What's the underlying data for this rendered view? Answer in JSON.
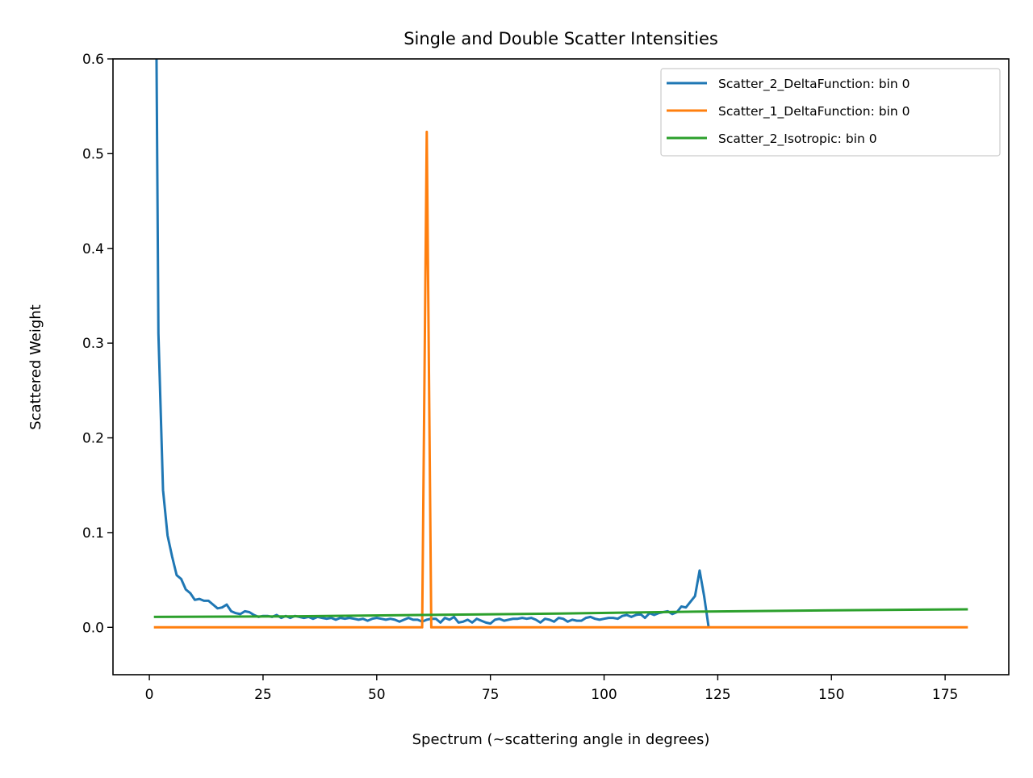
{
  "chart_data": {
    "type": "line",
    "title": "Single and Double Scatter Intensities",
    "xlabel": "Spectrum (~scattering angle in degrees)",
    "ylabel": "Scattered Weight",
    "xlim": [
      -8,
      189
    ],
    "ylim": [
      -0.05,
      0.6
    ],
    "xticks": [
      0,
      25,
      50,
      75,
      100,
      125,
      150,
      175
    ],
    "xtick_labels": [
      "0",
      "25",
      "50",
      "75",
      "100",
      "125",
      "150",
      "175"
    ],
    "yticks": [
      0.0,
      0.1,
      0.2,
      0.3,
      0.4,
      0.5,
      0.6
    ],
    "ytick_labels": [
      "0.0",
      "0.1",
      "0.2",
      "0.3",
      "0.4",
      "0.5",
      "0.6"
    ],
    "grid": false,
    "legend_position": "top-right",
    "series": [
      {
        "name": "Scatter_2_DeltaFunction: bin 0",
        "color": "#1f77b4",
        "x_start": 1,
        "values": [
          1.0,
          0.31,
          0.145,
          0.097,
          0.075,
          0.055,
          0.051,
          0.04,
          0.036,
          0.029,
          0.03,
          0.028,
          0.028,
          0.024,
          0.02,
          0.021,
          0.024,
          0.017,
          0.015,
          0.014,
          0.017,
          0.016,
          0.013,
          0.011,
          0.012,
          0.012,
          0.011,
          0.013,
          0.01,
          0.012,
          0.01,
          0.012,
          0.011,
          0.01,
          0.011,
          0.009,
          0.011,
          0.01,
          0.009,
          0.01,
          0.008,
          0.01,
          0.009,
          0.01,
          0.009,
          0.008,
          0.009,
          0.007,
          0.009,
          0.01,
          0.009,
          0.008,
          0.009,
          0.008,
          0.006,
          0.008,
          0.01,
          0.008,
          0.008,
          0.006,
          0.008,
          0.009,
          0.009,
          0.005,
          0.01,
          0.008,
          0.011,
          0.005,
          0.006,
          0.008,
          0.005,
          0.009,
          0.007,
          0.005,
          0.004,
          0.008,
          0.009,
          0.007,
          0.008,
          0.009,
          0.009,
          0.01,
          0.009,
          0.01,
          0.008,
          0.005,
          0.009,
          0.008,
          0.006,
          0.01,
          0.009,
          0.006,
          0.008,
          0.007,
          0.007,
          0.01,
          0.011,
          0.009,
          0.008,
          0.009,
          0.01,
          0.01,
          0.009,
          0.012,
          0.013,
          0.011,
          0.013,
          0.014,
          0.01,
          0.015,
          0.013,
          0.015,
          0.016,
          0.017,
          0.014,
          0.016,
          0.022,
          0.021,
          0.027,
          0.033,
          0.06,
          0.033,
          0.0
        ]
      },
      {
        "name": "Scatter_1_DeltaFunction: bin 0",
        "color": "#ff7f0e",
        "points": [
          [
            1,
            0
          ],
          [
            60,
            0
          ],
          [
            61,
            0.523
          ],
          [
            62,
            0
          ],
          [
            180,
            0
          ]
        ]
      },
      {
        "name": "Scatter_2_Isotropic: bin 0",
        "color": "#2ca02c",
        "points": [
          [
            1,
            0.011
          ],
          [
            30,
            0.0115
          ],
          [
            60,
            0.013
          ],
          [
            90,
            0.0145
          ],
          [
            120,
            0.0165
          ],
          [
            150,
            0.018
          ],
          [
            180,
            0.019
          ]
        ]
      }
    ]
  }
}
